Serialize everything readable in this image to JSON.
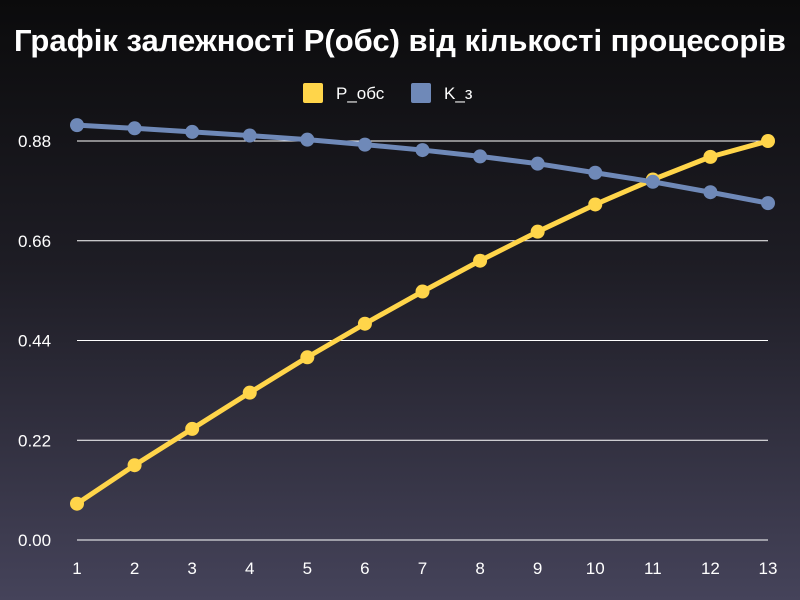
{
  "chart_data": {
    "type": "line",
    "title": "Графік залежності P(обс) від кількості процесорів",
    "xlabel": "",
    "ylabel": "",
    "x": [
      1,
      2,
      3,
      4,
      5,
      6,
      7,
      8,
      9,
      10,
      11,
      12,
      13
    ],
    "ylim": [
      0,
      0.88
    ],
    "yticks": [
      "0.00",
      "0.22",
      "0.44",
      "0.66",
      "0.88"
    ],
    "grid": true,
    "legend_position": "top-center",
    "series": [
      {
        "name": "P_обс",
        "color": "#ffd54a",
        "values": [
          0.08,
          0.165,
          0.245,
          0.325,
          0.403,
          0.477,
          0.548,
          0.616,
          0.68,
          0.74,
          0.795,
          0.845,
          0.88
        ]
      },
      {
        "name": "K_з",
        "color": "#6f89b8",
        "values": [
          0.915,
          0.908,
          0.9,
          0.892,
          0.883,
          0.872,
          0.86,
          0.846,
          0.83,
          0.81,
          0.79,
          0.767,
          0.743
        ]
      }
    ]
  }
}
